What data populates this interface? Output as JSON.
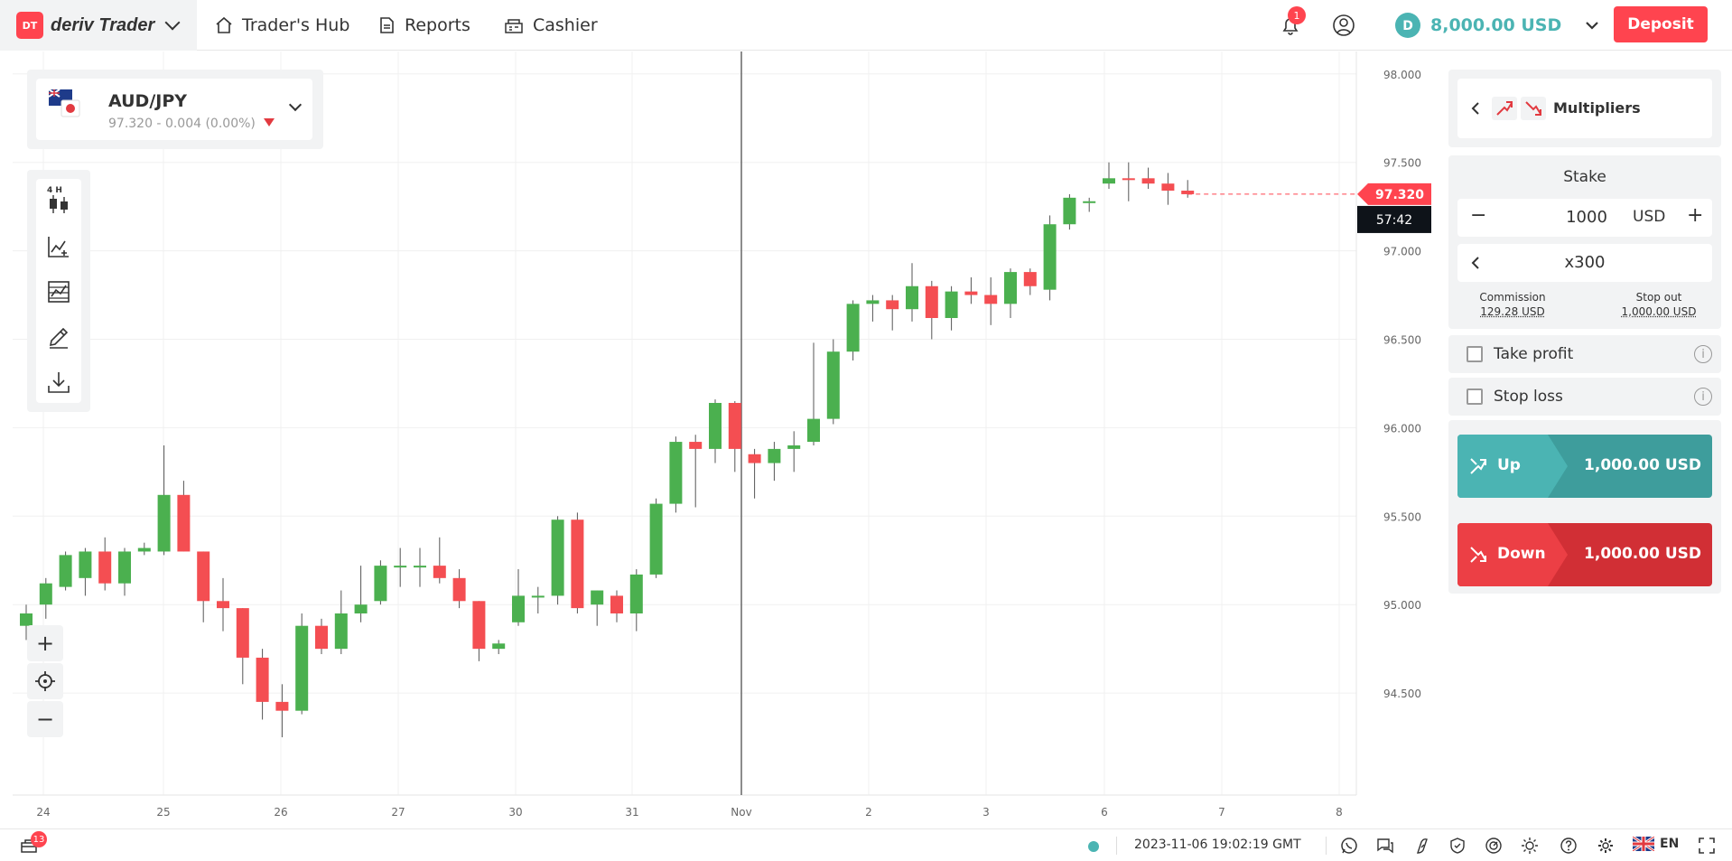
{
  "header": {
    "logo_text": "DT",
    "app_name": "deriv Trader",
    "nav": [
      {
        "label": "Trader's Hub",
        "icon": "home-icon"
      },
      {
        "label": "Reports",
        "icon": "reports-icon"
      },
      {
        "label": "Cashier",
        "icon": "cashier-icon"
      }
    ],
    "notifications_count": "1",
    "balance": "8,000.00 USD",
    "deposit_label": "Deposit"
  },
  "symbol": {
    "name": "AUD/JPY",
    "quote": "97.320 - 0.004 (0.00%)",
    "direction": "down"
  },
  "toolbar": {
    "interval_label": "4 H",
    "items": [
      "chart-type-icon",
      "indicators-icon",
      "templates-icon",
      "drawing-tools-icon",
      "download-icon"
    ]
  },
  "zoom": {
    "zoom_in": "+",
    "zoom_out": "−"
  },
  "chart_data": {
    "type": "candlestick",
    "x_tick_labels": [
      "24",
      "25",
      "26",
      "27",
      "30",
      "31",
      "Nov",
      "2",
      "3",
      "6",
      "7",
      "8"
    ],
    "y_tick_labels": [
      "98.000",
      "97.500",
      "97.000",
      "96.500",
      "96.000",
      "95.500",
      "95.000",
      "94.500"
    ],
    "ylim": [
      94.0,
      98.05
    ],
    "current_price": "97.320",
    "countdown": "57:42",
    "candles": [
      {
        "o": 94.88,
        "h": 95.0,
        "l": 94.8,
        "c": 94.95
      },
      {
        "o": 95.0,
        "h": 95.15,
        "l": 94.92,
        "c": 95.12
      },
      {
        "o": 95.1,
        "h": 95.3,
        "l": 95.08,
        "c": 95.28
      },
      {
        "o": 95.15,
        "h": 95.32,
        "l": 95.05,
        "c": 95.3
      },
      {
        "o": 95.3,
        "h": 95.38,
        "l": 95.08,
        "c": 95.12
      },
      {
        "o": 95.12,
        "h": 95.32,
        "l": 95.05,
        "c": 95.3
      },
      {
        "o": 95.3,
        "h": 95.35,
        "l": 95.28,
        "c": 95.32
      },
      {
        "o": 95.3,
        "h": 95.9,
        "l": 95.28,
        "c": 95.62
      },
      {
        "o": 95.62,
        "h": 95.7,
        "l": 95.3,
        "c": 95.3
      },
      {
        "o": 95.3,
        "h": 95.3,
        "l": 94.9,
        "c": 95.02
      },
      {
        "o": 95.02,
        "h": 95.15,
        "l": 94.85,
        "c": 94.98
      },
      {
        "o": 94.98,
        "h": 94.98,
        "l": 94.55,
        "c": 94.7
      },
      {
        "o": 94.7,
        "h": 94.75,
        "l": 94.35,
        "c": 94.45
      },
      {
        "o": 94.45,
        "h": 94.55,
        "l": 94.25,
        "c": 94.4
      },
      {
        "o": 94.4,
        "h": 94.95,
        "l": 94.38,
        "c": 94.88
      },
      {
        "o": 94.88,
        "h": 94.92,
        "l": 94.72,
        "c": 94.75
      },
      {
        "o": 94.75,
        "h": 95.08,
        "l": 94.72,
        "c": 94.95
      },
      {
        "o": 94.95,
        "h": 95.22,
        "l": 94.9,
        "c": 95.0
      },
      {
        "o": 95.02,
        "h": 95.25,
        "l": 95.0,
        "c": 95.22
      },
      {
        "o": 95.22,
        "h": 95.32,
        "l": 95.1,
        "c": 95.22
      },
      {
        "o": 95.22,
        "h": 95.32,
        "l": 95.1,
        "c": 95.22
      },
      {
        "o": 95.22,
        "h": 95.38,
        "l": 95.12,
        "c": 95.15
      },
      {
        "o": 95.15,
        "h": 95.2,
        "l": 94.98,
        "c": 95.02
      },
      {
        "o": 95.02,
        "h": 95.02,
        "l": 94.68,
        "c": 94.75
      },
      {
        "o": 94.75,
        "h": 94.8,
        "l": 94.72,
        "c": 94.78
      },
      {
        "o": 94.9,
        "h": 95.2,
        "l": 94.88,
        "c": 95.05
      },
      {
        "o": 95.05,
        "h": 95.1,
        "l": 94.95,
        "c": 95.05
      },
      {
        "o": 95.05,
        "h": 95.5,
        "l": 95.0,
        "c": 95.48
      },
      {
        "o": 95.48,
        "h": 95.52,
        "l": 94.95,
        "c": 94.98
      },
      {
        "o": 95.0,
        "h": 95.08,
        "l": 94.88,
        "c": 95.08
      },
      {
        "o": 95.05,
        "h": 95.08,
        "l": 94.9,
        "c": 94.95
      },
      {
        "o": 94.95,
        "h": 95.2,
        "l": 94.85,
        "c": 95.17
      },
      {
        "o": 95.17,
        "h": 95.6,
        "l": 95.15,
        "c": 95.57
      },
      {
        "o": 95.57,
        "h": 95.95,
        "l": 95.52,
        "c": 95.92
      },
      {
        "o": 95.92,
        "h": 95.96,
        "l": 95.55,
        "c": 95.88
      },
      {
        "o": 95.88,
        "h": 96.16,
        "l": 95.8,
        "c": 96.14
      },
      {
        "o": 96.14,
        "h": 96.15,
        "l": 95.75,
        "c": 95.88
      },
      {
        "o": 95.85,
        "h": 95.88,
        "l": 95.6,
        "c": 95.8
      },
      {
        "o": 95.8,
        "h": 95.92,
        "l": 95.7,
        "c": 95.88
      },
      {
        "o": 95.88,
        "h": 95.98,
        "l": 95.75,
        "c": 95.9
      },
      {
        "o": 95.92,
        "h": 96.48,
        "l": 95.9,
        "c": 96.05
      },
      {
        "o": 96.05,
        "h": 96.5,
        "l": 96.02,
        "c": 96.43
      },
      {
        "o": 96.43,
        "h": 96.72,
        "l": 96.38,
        "c": 96.7
      },
      {
        "o": 96.7,
        "h": 96.75,
        "l": 96.6,
        "c": 96.72
      },
      {
        "o": 96.72,
        "h": 96.75,
        "l": 96.55,
        "c": 96.67
      },
      {
        "o": 96.67,
        "h": 96.93,
        "l": 96.6,
        "c": 96.8
      },
      {
        "o": 96.8,
        "h": 96.83,
        "l": 96.5,
        "c": 96.62
      },
      {
        "o": 96.62,
        "h": 96.8,
        "l": 96.55,
        "c": 96.77
      },
      {
        "o": 96.77,
        "h": 96.85,
        "l": 96.7,
        "c": 96.75
      },
      {
        "o": 96.75,
        "h": 96.85,
        "l": 96.58,
        "c": 96.7
      },
      {
        "o": 96.7,
        "h": 96.9,
        "l": 96.62,
        "c": 96.88
      },
      {
        "o": 96.88,
        "h": 96.9,
        "l": 96.75,
        "c": 96.8
      },
      {
        "o": 96.78,
        "h": 97.2,
        "l": 96.72,
        "c": 97.15
      },
      {
        "o": 97.15,
        "h": 97.32,
        "l": 97.12,
        "c": 97.3
      },
      {
        "o": 97.28,
        "h": 97.3,
        "l": 97.22,
        "c": 97.28
      },
      {
        "o": 97.38,
        "h": 97.5,
        "l": 97.35,
        "c": 97.41
      },
      {
        "o": 97.41,
        "h": 97.5,
        "l": 97.28,
        "c": 97.4
      },
      {
        "o": 97.41,
        "h": 97.47,
        "l": 97.35,
        "c": 97.38
      },
      {
        "o": 97.38,
        "h": 97.44,
        "l": 97.26,
        "c": 97.34
      },
      {
        "o": 97.34,
        "h": 97.4,
        "l": 97.3,
        "c": 97.32
      }
    ]
  },
  "trade": {
    "contract_type": "Multipliers",
    "stake_title": "Stake",
    "stake_value": "1000",
    "currency": "USD",
    "multiplier": "x300",
    "commission_label": "Commission",
    "commission_value": "129.28 USD",
    "stop_out_label": "Stop out",
    "stop_out_value": "1,000.00 USD",
    "take_profit_label": "Take profit",
    "stop_loss_label": "Stop loss",
    "up_label": "Up",
    "up_amount": "1,000.00 USD",
    "down_label": "Down",
    "down_amount": "1,000.00 USD"
  },
  "footer": {
    "positions_count": "13",
    "server_time": "2023-11-06 19:02:19 GMT",
    "language": "EN"
  },
  "colors": {
    "brand_red": "#ff444f",
    "candle_up": "#4bb04f",
    "candle_down": "#f44e52",
    "teal": "#4bb4b3",
    "up_button": "#4bb4b3",
    "down_button": "#e23a40"
  }
}
